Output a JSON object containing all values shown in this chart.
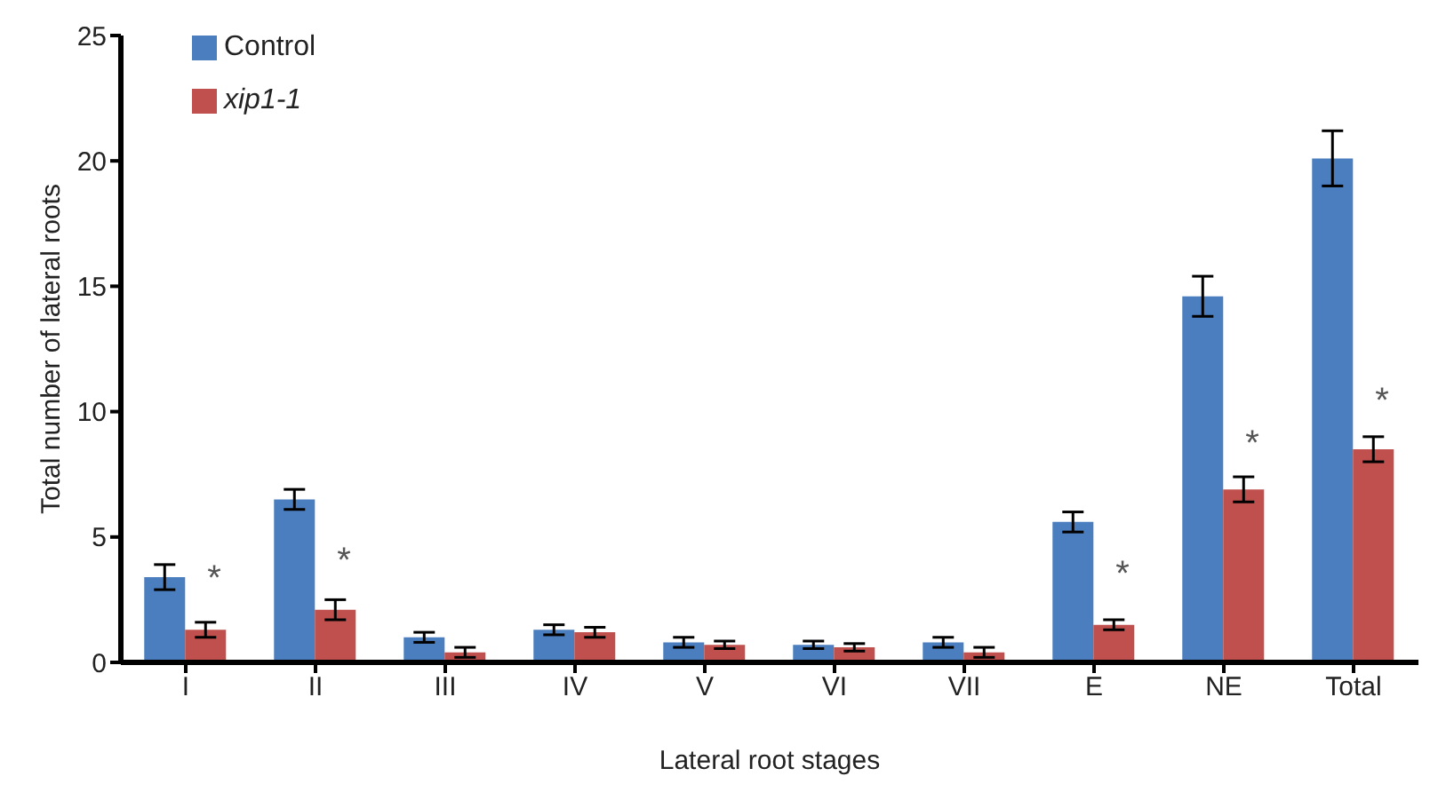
{
  "chart_data": {
    "type": "bar",
    "xlabel": "Lateral root stages",
    "ylabel": "Total number of lateral roots",
    "categories": [
      "I",
      "II",
      "III",
      "IV",
      "V",
      "VI",
      "VII",
      "E",
      "NE",
      "Total"
    ],
    "series": [
      {
        "name": "Control",
        "color": "#4a7ebf",
        "values": [
          3.4,
          6.5,
          1.0,
          1.3,
          0.8,
          0.7,
          0.8,
          5.6,
          14.6,
          20.1
        ],
        "errors": [
          0.5,
          0.4,
          0.2,
          0.2,
          0.2,
          0.15,
          0.2,
          0.4,
          0.8,
          1.1
        ]
      },
      {
        "name": "xip1-1",
        "color": "#c0504d",
        "values": [
          1.3,
          2.1,
          0.4,
          1.2,
          0.7,
          0.6,
          0.4,
          1.5,
          6.9,
          8.5
        ],
        "errors": [
          0.3,
          0.4,
          0.2,
          0.2,
          0.15,
          0.15,
          0.2,
          0.2,
          0.5,
          0.5
        ]
      }
    ],
    "ylim": [
      0,
      25
    ],
    "yticks": [
      0,
      5,
      10,
      15,
      20,
      25
    ],
    "legend": "top left",
    "annotations": [
      {
        "text": "*",
        "x": "I",
        "y": 3.4
      },
      {
        "text": "*",
        "x": "II",
        "y": 4.1
      },
      {
        "text": "*",
        "x": "E",
        "y": 3.6
      },
      {
        "text": "*",
        "x": "NE",
        "y": 8.8
      },
      {
        "text": "*",
        "x": "Total",
        "y": 10.5
      }
    ]
  }
}
